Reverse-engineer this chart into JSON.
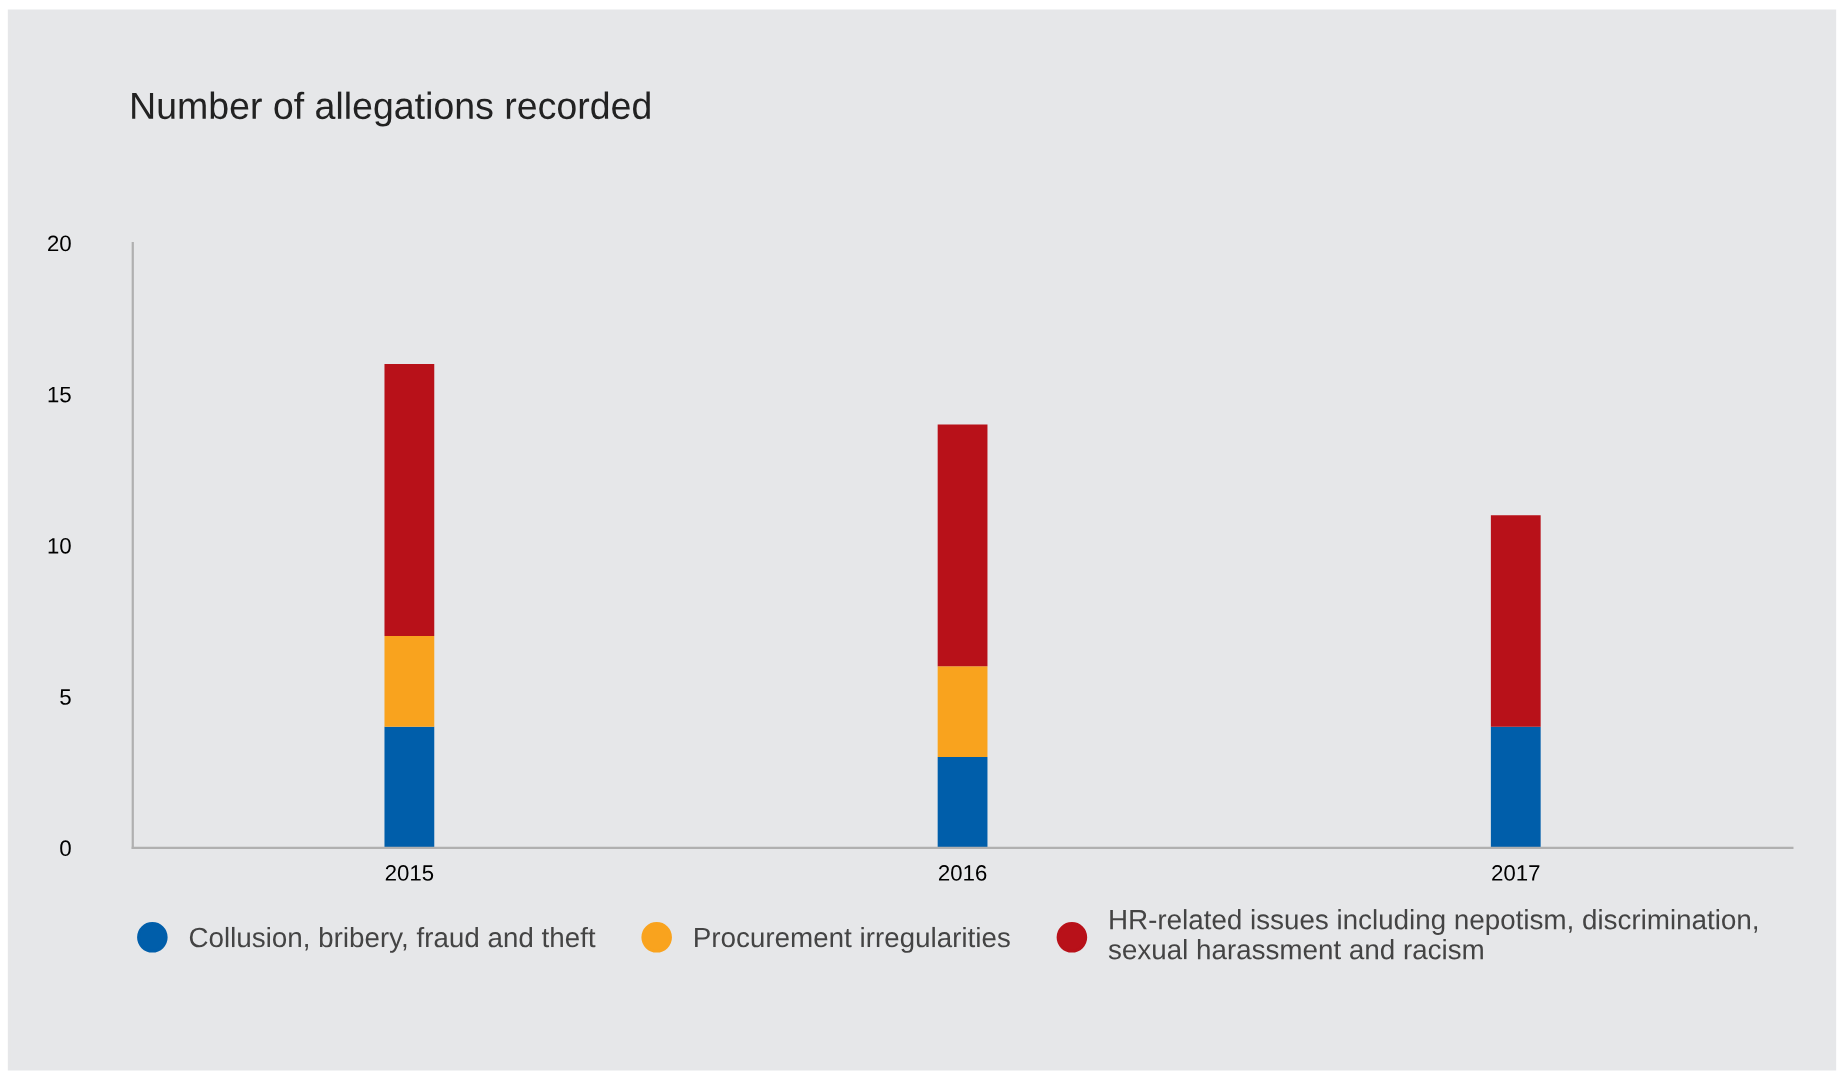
{
  "chart_data": {
    "type": "bar",
    "title": "Number of allegations recorded",
    "categories": [
      "2015",
      "2016",
      "2017"
    ],
    "stacked": true,
    "series": [
      {
        "name": "Collusion, bribery, fraud and theft",
        "color": "#005eaa",
        "values": [
          4,
          3,
          4
        ]
      },
      {
        "name": "Procurement irregularities",
        "color": "#f9a31e",
        "values": [
          3,
          3,
          0
        ]
      },
      {
        "name": "HR-related issues including nepotism, discrimination,\nsexual harassment and racism",
        "color": "#b81119",
        "values": [
          9,
          8,
          7
        ]
      }
    ],
    "ylim": [
      0,
      20
    ],
    "yticks": [
      0,
      5,
      10,
      15,
      20
    ],
    "grid": false,
    "legend": "bottom"
  }
}
